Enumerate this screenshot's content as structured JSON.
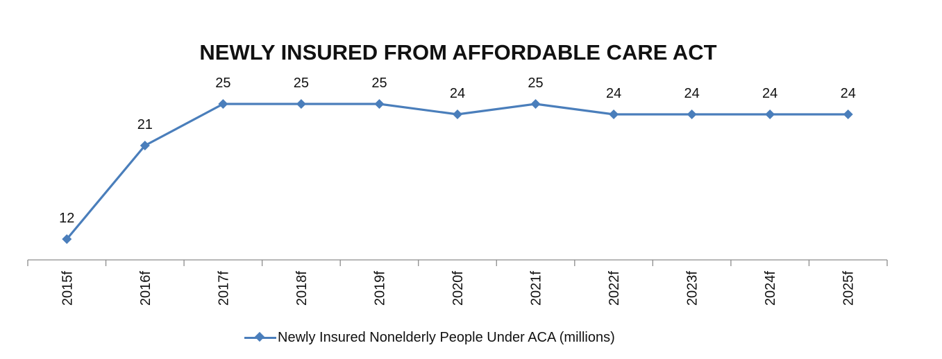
{
  "chart_data": {
    "type": "line",
    "title": "NEWLY INSURED FROM AFFORDABLE CARE ACT",
    "xlabel": "",
    "ylabel": "",
    "categories": [
      "2015f",
      "2016f",
      "2017f",
      "2018f",
      "2019f",
      "2020f",
      "2021f",
      "2022f",
      "2023f",
      "2024f",
      "2025f"
    ],
    "series": [
      {
        "name": "Newly Insured Nonelderly People Under ACA (millions)",
        "values": [
          12,
          21,
          25,
          25,
          25,
          24,
          25,
          24,
          24,
          24,
          24
        ],
        "color": "#4a7ebb",
        "marker": "diamond"
      }
    ],
    "data_labels": [
      "12",
      "21",
      "25",
      "25",
      "25",
      "24",
      "25",
      "24",
      "24",
      "24",
      "24"
    ],
    "ylim": [
      10,
      27
    ],
    "y_axis_visible": false,
    "grid": false,
    "legend": {
      "position": "bottom",
      "entries": [
        "Newly Insured Nonelderly People Under ACA (millions)"
      ]
    }
  }
}
